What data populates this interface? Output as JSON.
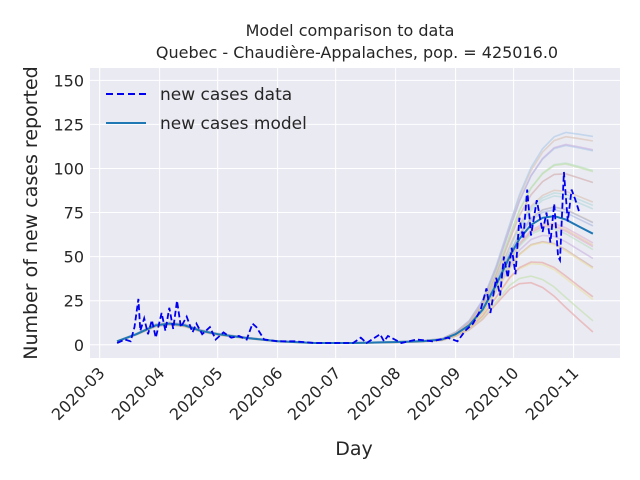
{
  "chart_data": {
    "type": "line",
    "title": "Model comparison to data",
    "subtitle": "Quebec - Chaudière-Appalaches, pop. = 425016.0",
    "xlabel": "Day",
    "ylabel": "Number of new cases reported",
    "x_ticks": [
      "2020-03",
      "2020-04",
      "2020-05",
      "2020-06",
      "2020-07",
      "2020-08",
      "2020-09",
      "2020-10",
      "2020-11"
    ],
    "y_ticks": [
      0,
      25,
      50,
      75,
      100,
      125,
      150
    ],
    "xlim": [
      "2020-02-25",
      "2020-11-25"
    ],
    "ylim": [
      -7.5,
      157
    ],
    "grid": true,
    "legend_position": "top-left",
    "colors": {
      "data": "#0000ee",
      "model": "#1f77b4",
      "background": "#eaeaf2"
    },
    "series": [
      {
        "name": "new cases data",
        "style": "dashed",
        "points": [
          [
            "2020-03-10",
            1
          ],
          [
            "2020-03-14",
            3
          ],
          [
            "2020-03-17",
            2
          ],
          [
            "2020-03-19",
            10
          ],
          [
            "2020-03-21",
            26
          ],
          [
            "2020-03-22",
            8
          ],
          [
            "2020-03-24",
            15
          ],
          [
            "2020-03-26",
            6
          ],
          [
            "2020-03-28",
            14
          ],
          [
            "2020-03-30",
            4
          ],
          [
            "2020-04-02",
            18
          ],
          [
            "2020-04-04",
            8
          ],
          [
            "2020-04-06",
            21
          ],
          [
            "2020-04-08",
            9
          ],
          [
            "2020-04-10",
            25
          ],
          [
            "2020-04-12",
            10
          ],
          [
            "2020-04-15",
            16
          ],
          [
            "2020-04-18",
            7
          ],
          [
            "2020-04-20",
            12
          ],
          [
            "2020-04-23",
            6
          ],
          [
            "2020-04-27",
            10
          ],
          [
            "2020-04-30",
            3
          ],
          [
            "2020-05-04",
            7
          ],
          [
            "2020-05-08",
            4
          ],
          [
            "2020-05-12",
            5
          ],
          [
            "2020-05-16",
            3
          ],
          [
            "2020-05-19",
            12
          ],
          [
            "2020-05-21",
            10
          ],
          [
            "2020-05-25",
            3
          ],
          [
            "2020-06-01",
            2
          ],
          [
            "2020-06-10",
            2
          ],
          [
            "2020-06-20",
            1
          ],
          [
            "2020-07-01",
            1
          ],
          [
            "2020-07-10",
            1
          ],
          [
            "2020-07-14",
            4
          ],
          [
            "2020-07-17",
            1
          ],
          [
            "2020-07-24",
            6
          ],
          [
            "2020-07-26",
            2
          ],
          [
            "2020-07-28",
            5
          ],
          [
            "2020-08-04",
            1
          ],
          [
            "2020-08-12",
            3
          ],
          [
            "2020-08-20",
            2
          ],
          [
            "2020-08-28",
            4
          ],
          [
            "2020-09-02",
            2
          ],
          [
            "2020-09-06",
            8
          ],
          [
            "2020-09-10",
            12
          ],
          [
            "2020-09-14",
            20
          ],
          [
            "2020-09-17",
            32
          ],
          [
            "2020-09-19",
            18
          ],
          [
            "2020-09-22",
            38
          ],
          [
            "2020-09-24",
            28
          ],
          [
            "2020-09-26",
            50
          ],
          [
            "2020-09-28",
            38
          ],
          [
            "2020-09-30",
            55
          ],
          [
            "2020-10-02",
            40
          ],
          [
            "2020-10-04",
            72
          ],
          [
            "2020-10-06",
            60
          ],
          [
            "2020-10-08",
            88
          ],
          [
            "2020-10-10",
            62
          ],
          [
            "2020-10-13",
            82
          ],
          [
            "2020-10-16",
            64
          ],
          [
            "2020-10-18",
            75
          ],
          [
            "2020-10-20",
            58
          ],
          [
            "2020-10-22",
            80
          ],
          [
            "2020-10-24",
            50
          ],
          [
            "2020-10-25",
            48
          ],
          [
            "2020-10-27",
            98
          ],
          [
            "2020-10-29",
            70
          ],
          [
            "2020-10-31",
            88
          ],
          [
            "2020-11-02",
            82
          ],
          [
            "2020-11-04",
            75
          ]
        ]
      },
      {
        "name": "new cases model",
        "style": "solid",
        "points": [
          [
            "2020-03-10",
            2
          ],
          [
            "2020-03-20",
            6
          ],
          [
            "2020-03-30",
            11
          ],
          [
            "2020-04-06",
            12
          ],
          [
            "2020-04-14",
            11
          ],
          [
            "2020-04-22",
            8
          ],
          [
            "2020-05-01",
            6
          ],
          [
            "2020-05-15",
            4
          ],
          [
            "2020-06-01",
            2
          ],
          [
            "2020-06-20",
            1
          ],
          [
            "2020-07-10",
            1
          ],
          [
            "2020-07-31",
            1.5
          ],
          [
            "2020-08-15",
            2
          ],
          [
            "2020-08-25",
            3
          ],
          [
            "2020-09-01",
            6
          ],
          [
            "2020-09-08",
            11
          ],
          [
            "2020-09-15",
            20
          ],
          [
            "2020-09-22",
            34
          ],
          [
            "2020-09-29",
            50
          ],
          [
            "2020-10-04",
            60
          ],
          [
            "2020-10-10",
            68
          ],
          [
            "2020-10-16",
            72
          ],
          [
            "2020-10-22",
            73
          ],
          [
            "2020-10-28",
            71
          ],
          [
            "2020-11-04",
            67
          ],
          [
            "2020-11-11",
            63
          ]
        ]
      }
    ]
  }
}
